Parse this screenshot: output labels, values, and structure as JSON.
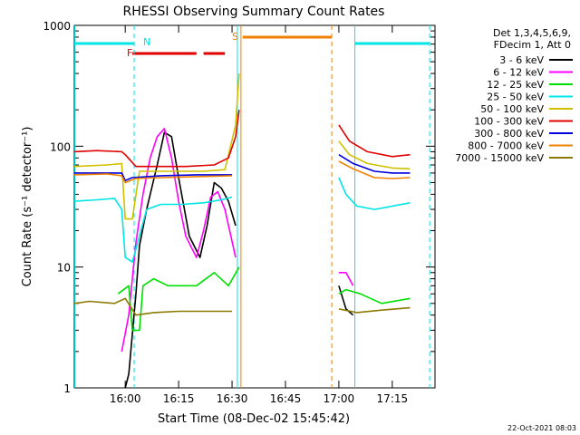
{
  "chart_data": {
    "type": "line",
    "title": "RHESSI Observing Summary Count Rates",
    "xlabel": "Start Time (08-Dec-02 15:45:42)",
    "ylabel": "Count Rate (s⁻¹ detector⁻¹)",
    "y_scale": "log",
    "ylim": [
      1,
      1000
    ],
    "xlim": [
      "15:45:42",
      "17:27:00"
    ],
    "x_ticks": [
      "16:00",
      "16:15",
      "16:30",
      "16:45",
      "17:00",
      "17:15"
    ],
    "y_ticks": [
      "1",
      "10",
      "100",
      "1000"
    ],
    "legend": {
      "placement": "top-right",
      "header": [
        "Det 1,3,4,5,6,9,",
        "FDecim 1, Att 0"
      ]
    },
    "flags": [
      {
        "label": "N",
        "color": "#00e5e5"
      },
      {
        "label": "F",
        "color": "#e00000"
      },
      {
        "label": "S",
        "color": "#f08000"
      }
    ],
    "series": [
      {
        "name": "3 - 6 keV",
        "color": "#000000",
        "points": [
          [
            "15:45:42",
            null
          ],
          [
            "16:00",
            1.0
          ],
          [
            "16:01",
            1.3
          ],
          [
            "16:03",
            6
          ],
          [
            "16:04",
            15
          ],
          [
            "16:06",
            30
          ],
          [
            "16:09",
            70
          ],
          [
            "16:11",
            130
          ],
          [
            "16:13",
            120
          ],
          [
            "16:15",
            55
          ],
          [
            "16:18",
            18
          ],
          [
            "16:21",
            12
          ],
          [
            "16:23",
            22
          ],
          [
            "16:25",
            50
          ],
          [
            "16:27",
            45
          ],
          [
            "16:29",
            35
          ],
          [
            "16:31",
            22
          ],
          [
            "16:32",
            null
          ],
          [
            "17:00",
            7
          ],
          [
            "17:02",
            4.5
          ],
          [
            "17:04",
            4
          ]
        ]
      },
      {
        "name": "6 - 12 keV",
        "color": "#ff00ff",
        "points": [
          [
            "15:59",
            2
          ],
          [
            "16:01",
            4
          ],
          [
            "16:03",
            16
          ],
          [
            "16:05",
            40
          ],
          [
            "16:07",
            80
          ],
          [
            "16:09",
            120
          ],
          [
            "16:11",
            140
          ],
          [
            "16:13",
            80
          ],
          [
            "16:15",
            35
          ],
          [
            "16:17",
            18
          ],
          [
            "16:20",
            12
          ],
          [
            "16:22",
            20
          ],
          [
            "16:24",
            38
          ],
          [
            "16:26",
            42
          ],
          [
            "16:28",
            30
          ],
          [
            "16:31",
            12
          ],
          [
            "16:32",
            null
          ],
          [
            "17:00",
            9
          ],
          [
            "17:02",
            9
          ],
          [
            "17:04",
            7
          ]
        ]
      },
      {
        "name": "12 - 25 keV",
        "color": "#00e000",
        "points": [
          [
            "15:58",
            6
          ],
          [
            "16:01",
            7
          ],
          [
            "16:02",
            3
          ],
          [
            "16:04",
            3
          ],
          [
            "16:05",
            7
          ],
          [
            "16:08",
            8
          ],
          [
            "16:12",
            7
          ],
          [
            "16:16",
            7
          ],
          [
            "16:20",
            7
          ],
          [
            "16:25",
            9
          ],
          [
            "16:29",
            7
          ],
          [
            "16:32",
            10
          ],
          [
            "16:33",
            null
          ],
          [
            "17:00",
            6
          ],
          [
            "17:02",
            6.5
          ],
          [
            "17:06",
            6
          ],
          [
            "17:12",
            5
          ],
          [
            "17:20",
            5.5
          ]
        ]
      },
      {
        "name": "25 - 50 keV",
        "color": "#00e5e5",
        "points": [
          [
            "15:45:42",
            35
          ],
          [
            "15:52",
            36
          ],
          [
            "15:57",
            37
          ],
          [
            "15:59",
            30
          ],
          [
            "16:00",
            12
          ],
          [
            "16:02",
            11
          ],
          [
            "16:04",
            18
          ],
          [
            "16:06",
            30
          ],
          [
            "16:10",
            33
          ],
          [
            "16:16",
            33
          ],
          [
            "16:22",
            34
          ],
          [
            "16:27",
            36
          ],
          [
            "16:30",
            38
          ],
          [
            "16:33",
            null
          ],
          [
            "17:00",
            55
          ],
          [
            "17:02",
            40
          ],
          [
            "17:05",
            32
          ],
          [
            "17:10",
            30
          ],
          [
            "17:20",
            34
          ]
        ]
      },
      {
        "name": "50 - 100 keV",
        "color": "#d0c000",
        "points": [
          [
            "15:45:42",
            68
          ],
          [
            "15:55",
            70
          ],
          [
            "15:59",
            72
          ],
          [
            "16:00",
            25
          ],
          [
            "16:02",
            25
          ],
          [
            "16:04",
            62
          ],
          [
            "16:10",
            62
          ],
          [
            "16:16",
            62
          ],
          [
            "16:22",
            62
          ],
          [
            "16:28",
            64
          ],
          [
            "16:31",
            150
          ],
          [
            "16:32",
            400
          ],
          [
            "16:33",
            null
          ],
          [
            "17:00",
            110
          ],
          [
            "17:03",
            85
          ],
          [
            "17:08",
            72
          ],
          [
            "17:15",
            66
          ],
          [
            "17:20",
            65
          ]
        ]
      },
      {
        "name": "100 - 300 keV",
        "color": "#e00000",
        "points": [
          [
            "15:45:42",
            90
          ],
          [
            "15:52",
            92
          ],
          [
            "15:59",
            90
          ],
          [
            "16:00",
            85
          ],
          [
            "16:03",
            68
          ],
          [
            "16:10",
            68
          ],
          [
            "16:17",
            68
          ],
          [
            "16:25",
            70
          ],
          [
            "16:29",
            80
          ],
          [
            "16:31",
            120
          ],
          [
            "16:32",
            200
          ],
          [
            "16:33",
            null
          ],
          [
            "17:00",
            150
          ],
          [
            "17:03",
            110
          ],
          [
            "17:08",
            90
          ],
          [
            "17:15",
            82
          ],
          [
            "17:20",
            85
          ]
        ]
      },
      {
        "name": "300 - 800 keV",
        "color": "#0000e0",
        "points": [
          [
            "15:45:42",
            60
          ],
          [
            "15:55",
            60
          ],
          [
            "15:59",
            60
          ],
          [
            "16:00",
            52
          ],
          [
            "16:02",
            55
          ],
          [
            "16:10",
            57
          ],
          [
            "16:20",
            58
          ],
          [
            "16:30",
            58
          ],
          [
            "16:32",
            null
          ],
          [
            "17:00",
            85
          ],
          [
            "17:04",
            72
          ],
          [
            "17:10",
            62
          ],
          [
            "17:15",
            60
          ],
          [
            "17:20",
            60
          ]
        ]
      },
      {
        "name": "800 - 7000 keV",
        "color": "#f08000",
        "points": [
          [
            "15:45:42",
            58
          ],
          [
            "15:55",
            59
          ],
          [
            "15:59",
            57
          ],
          [
            "16:00",
            50
          ],
          [
            "16:03",
            54
          ],
          [
            "16:10",
            55
          ],
          [
            "16:20",
            56
          ],
          [
            "16:30",
            57
          ],
          [
            "16:32",
            null
          ],
          [
            "17:00",
            75
          ],
          [
            "17:04",
            65
          ],
          [
            "17:10",
            55
          ],
          [
            "17:15",
            54
          ],
          [
            "17:20",
            55
          ]
        ]
      },
      {
        "name": "7000 - 15000 keV",
        "color": "#8c7a00",
        "points": [
          [
            "15:45:42",
            5
          ],
          [
            "15:50",
            5.2
          ],
          [
            "15:57",
            5
          ],
          [
            "16:00",
            5.5
          ],
          [
            "16:03",
            4
          ],
          [
            "16:08",
            4.2
          ],
          [
            "16:15",
            4.3
          ],
          [
            "16:22",
            4.3
          ],
          [
            "16:30",
            4.3
          ],
          [
            "16:32",
            null
          ],
          [
            "17:00",
            4.5
          ],
          [
            "17:05",
            4.2
          ],
          [
            "17:12",
            4.4
          ],
          [
            "17:20",
            4.6
          ]
        ]
      }
    ]
  },
  "footer": {
    "timestamp": "22-Oct-2021 08:03"
  }
}
